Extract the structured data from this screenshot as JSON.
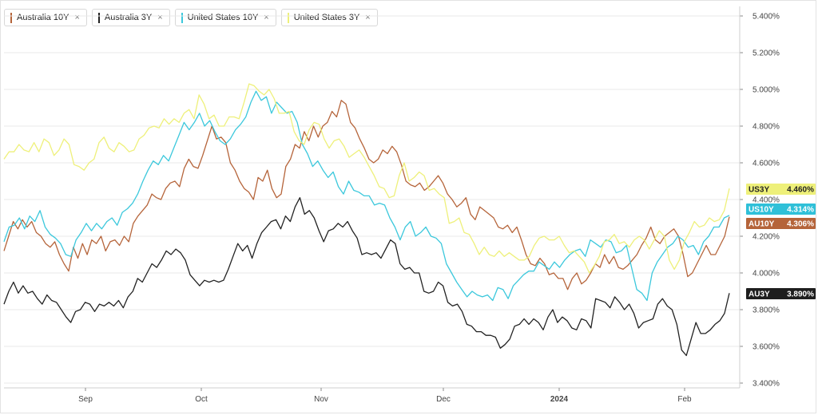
{
  "legend": [
    {
      "label": "Australia 10Y",
      "color": "#b5643a"
    },
    {
      "label": "Australia 3Y",
      "color": "#222222"
    },
    {
      "label": "United States 10Y",
      "color": "#3cc8dc"
    },
    {
      "label": "United States 3Y",
      "color": "#eef07a"
    }
  ],
  "legend_close_glyph": "×",
  "chart_data": {
    "type": "line",
    "title": "",
    "xlabel": "",
    "ylabel": "",
    "x_ticks": [
      "Sep",
      "Oct",
      "Nov",
      "Dec",
      "2024",
      "Feb"
    ],
    "y_ticks": [
      "5.400%",
      "5.200%",
      "5.000%",
      "4.800%",
      "4.600%",
      "4.400%",
      "4.200%",
      "4.000%",
      "3.800%",
      "3.600%",
      "3.400%"
    ],
    "ylim": [
      3.4,
      5.4
    ],
    "grid": "horizontal",
    "series": [
      {
        "name": "Australia 10Y",
        "tag": "AU10Y",
        "last_label": "4.306%",
        "color": "#b5643a",
        "tag_bg": "#b5643a",
        "tag_fg": "#ffffff",
        "values": [
          4.12,
          4.2,
          4.28,
          4.24,
          4.29,
          4.25,
          4.28,
          4.22,
          4.2,
          4.16,
          4.14,
          4.17,
          4.1,
          4.05,
          4.01,
          4.14,
          4.08,
          4.16,
          4.1,
          4.18,
          4.16,
          4.2,
          4.12,
          4.17,
          4.18,
          4.15,
          4.2,
          4.17,
          4.27,
          4.31,
          4.34,
          4.37,
          4.43,
          4.41,
          4.4,
          4.46,
          4.49,
          4.5,
          4.47,
          4.57,
          4.62,
          4.58,
          4.57,
          4.64,
          4.72,
          4.8,
          4.73,
          4.74,
          4.71,
          4.6,
          4.56,
          4.5,
          4.46,
          4.44,
          4.4,
          4.52,
          4.5,
          4.56,
          4.46,
          4.41,
          4.43,
          4.58,
          4.62,
          4.7,
          4.68,
          4.77,
          4.72,
          4.8,
          4.74,
          4.8,
          4.82,
          4.88,
          4.85,
          4.94,
          4.92,
          4.82,
          4.79,
          4.73,
          4.68,
          4.62,
          4.6,
          4.62,
          4.67,
          4.65,
          4.69,
          4.66,
          4.59,
          4.5,
          4.48,
          4.47,
          4.49,
          4.45,
          4.47,
          4.5,
          4.53,
          4.49,
          4.43,
          4.4,
          4.36,
          4.38,
          4.41,
          4.32,
          4.29,
          4.36,
          4.34,
          4.32,
          4.3,
          4.25,
          4.24,
          4.26,
          4.22,
          4.25,
          4.18,
          4.1,
          4.05,
          4.04,
          4.08,
          4.05,
          3.99,
          4.0,
          3.97,
          3.97,
          3.91,
          3.97,
          4.0,
          3.94,
          3.96,
          4.0,
          4.05,
          4.03,
          4.1,
          4.05,
          4.09,
          4.03,
          4.02,
          4.04,
          4.07,
          4.1,
          4.15,
          4.19,
          4.25,
          4.18,
          4.16,
          4.2,
          4.22,
          4.24,
          4.2,
          4.1,
          3.98,
          4.0,
          4.05,
          4.1,
          4.15,
          4.1,
          4.1,
          4.15,
          4.2,
          4.306
        ]
      },
      {
        "name": "Australia 3Y",
        "tag": "AU3Y",
        "last_label": "3.890%",
        "color": "#222222",
        "tag_bg": "#1e1e1e",
        "tag_fg": "#ffffff",
        "values": [
          3.83,
          3.9,
          3.95,
          3.89,
          3.93,
          3.89,
          3.9,
          3.86,
          3.83,
          3.88,
          3.85,
          3.84,
          3.8,
          3.76,
          3.73,
          3.79,
          3.8,
          3.84,
          3.83,
          3.79,
          3.83,
          3.82,
          3.84,
          3.82,
          3.85,
          3.81,
          3.87,
          3.9,
          3.97,
          3.95,
          4.0,
          4.05,
          4.03,
          4.07,
          4.12,
          4.1,
          4.13,
          4.11,
          4.07,
          3.99,
          3.96,
          3.93,
          3.96,
          3.95,
          3.96,
          3.95,
          3.96,
          4.02,
          4.09,
          4.16,
          4.12,
          4.15,
          4.08,
          4.16,
          4.22,
          4.25,
          4.28,
          4.29,
          4.24,
          4.31,
          4.28,
          4.36,
          4.41,
          4.32,
          4.34,
          4.3,
          4.23,
          4.17,
          4.23,
          4.24,
          4.27,
          4.25,
          4.28,
          4.23,
          4.19,
          4.1,
          4.11,
          4.1,
          4.11,
          4.08,
          4.13,
          4.18,
          4.16,
          4.05,
          4.02,
          4.03,
          4.0,
          4.0,
          3.9,
          3.89,
          3.9,
          3.95,
          3.93,
          3.84,
          3.82,
          3.83,
          3.79,
          3.72,
          3.71,
          3.68,
          3.68,
          3.66,
          3.66,
          3.65,
          3.59,
          3.61,
          3.64,
          3.71,
          3.72,
          3.75,
          3.72,
          3.75,
          3.73,
          3.69,
          3.76,
          3.8,
          3.73,
          3.76,
          3.74,
          3.7,
          3.69,
          3.75,
          3.74,
          3.7,
          3.86,
          3.85,
          3.84,
          3.81,
          3.87,
          3.84,
          3.8,
          3.83,
          3.78,
          3.7,
          3.73,
          3.74,
          3.75,
          3.83,
          3.86,
          3.82,
          3.8,
          3.72,
          3.58,
          3.55,
          3.64,
          3.73,
          3.67,
          3.67,
          3.69,
          3.72,
          3.74,
          3.78,
          3.89
        ]
      },
      {
        "name": "United States 10Y",
        "tag": "US10Y",
        "last_label": "4.314%",
        "color": "#3cc8dc",
        "tag_bg": "#2fc0d8",
        "tag_fg": "#ffffff",
        "values": [
          4.17,
          4.25,
          4.26,
          4.3,
          4.24,
          4.31,
          4.28,
          4.34,
          4.25,
          4.21,
          4.19,
          4.16,
          4.1,
          4.09,
          4.18,
          4.22,
          4.27,
          4.23,
          4.27,
          4.24,
          4.28,
          4.3,
          4.26,
          4.33,
          4.35,
          4.38,
          4.43,
          4.5,
          4.56,
          4.61,
          4.59,
          4.64,
          4.61,
          4.68,
          4.75,
          4.82,
          4.78,
          4.82,
          4.87,
          4.8,
          4.83,
          4.77,
          4.72,
          4.7,
          4.73,
          4.78,
          4.81,
          4.85,
          4.93,
          4.99,
          4.94,
          4.96,
          4.87,
          4.93,
          4.9,
          4.87,
          4.88,
          4.82,
          4.7,
          4.65,
          4.58,
          4.61,
          4.56,
          4.52,
          4.55,
          4.47,
          4.43,
          4.5,
          4.45,
          4.44,
          4.42,
          4.42,
          4.37,
          4.38,
          4.37,
          4.3,
          4.25,
          4.18,
          4.25,
          4.28,
          4.2,
          4.22,
          4.25,
          4.2,
          4.19,
          4.16,
          4.05,
          4.0,
          3.95,
          3.91,
          3.87,
          3.9,
          3.88,
          3.87,
          3.88,
          3.85,
          3.92,
          3.91,
          3.86,
          3.93,
          3.96,
          3.99,
          4.01,
          4.01,
          4.06,
          4.04,
          4.02,
          4.06,
          4.03,
          4.07,
          4.1,
          4.12,
          4.13,
          4.09,
          4.18,
          4.16,
          4.14,
          4.18,
          4.17,
          4.11,
          4.12,
          4.15,
          4.03,
          3.91,
          3.89,
          3.85,
          4.0,
          4.06,
          4.1,
          4.14,
          4.16,
          4.2,
          4.18,
          4.14,
          4.15,
          4.1,
          4.17,
          4.2,
          4.25,
          4.25,
          4.3,
          4.314
        ]
      },
      {
        "name": "United States 3Y",
        "tag": "US3Y",
        "last_label": "4.460%",
        "color": "#eef07a",
        "tag_bg": "#eef07a",
        "tag_fg": "#222222",
        "values": [
          4.62,
          4.66,
          4.66,
          4.7,
          4.67,
          4.66,
          4.71,
          4.66,
          4.73,
          4.71,
          4.64,
          4.67,
          4.73,
          4.7,
          4.59,
          4.58,
          4.56,
          4.6,
          4.62,
          4.71,
          4.74,
          4.68,
          4.66,
          4.71,
          4.69,
          4.66,
          4.67,
          4.73,
          4.75,
          4.79,
          4.8,
          4.79,
          4.84,
          4.81,
          4.84,
          4.82,
          4.87,
          4.89,
          4.84,
          4.97,
          4.92,
          4.84,
          4.86,
          4.8,
          4.8,
          4.85,
          4.85,
          4.84,
          4.93,
          5.03,
          5.02,
          4.99,
          4.97,
          5.0,
          4.95,
          4.87,
          4.87,
          4.88,
          4.77,
          4.72,
          4.7,
          4.78,
          4.82,
          4.81,
          4.73,
          4.68,
          4.72,
          4.73,
          4.69,
          4.63,
          4.65,
          4.67,
          4.63,
          4.58,
          4.53,
          4.47,
          4.46,
          4.41,
          4.42,
          4.53,
          4.6,
          4.5,
          4.52,
          4.55,
          4.53,
          4.45,
          4.46,
          4.43,
          4.41,
          4.27,
          4.28,
          4.3,
          4.22,
          4.21,
          4.16,
          4.1,
          4.14,
          4.1,
          4.09,
          4.12,
          4.09,
          4.11,
          4.09,
          4.07,
          4.07,
          4.09,
          4.15,
          4.19,
          4.2,
          4.18,
          4.18,
          4.2,
          4.15,
          4.11,
          4.12,
          4.09,
          4.06,
          4.0,
          4.04,
          4.09,
          4.17,
          4.18,
          4.21,
          4.16,
          4.17,
          4.14,
          4.18,
          4.2,
          4.18,
          4.13,
          4.18,
          4.23,
          4.2,
          4.07,
          4.02,
          4.07,
          4.17,
          4.22,
          4.28,
          4.25,
          4.26,
          4.3,
          4.28,
          4.29,
          4.34,
          4.46
        ]
      }
    ]
  }
}
